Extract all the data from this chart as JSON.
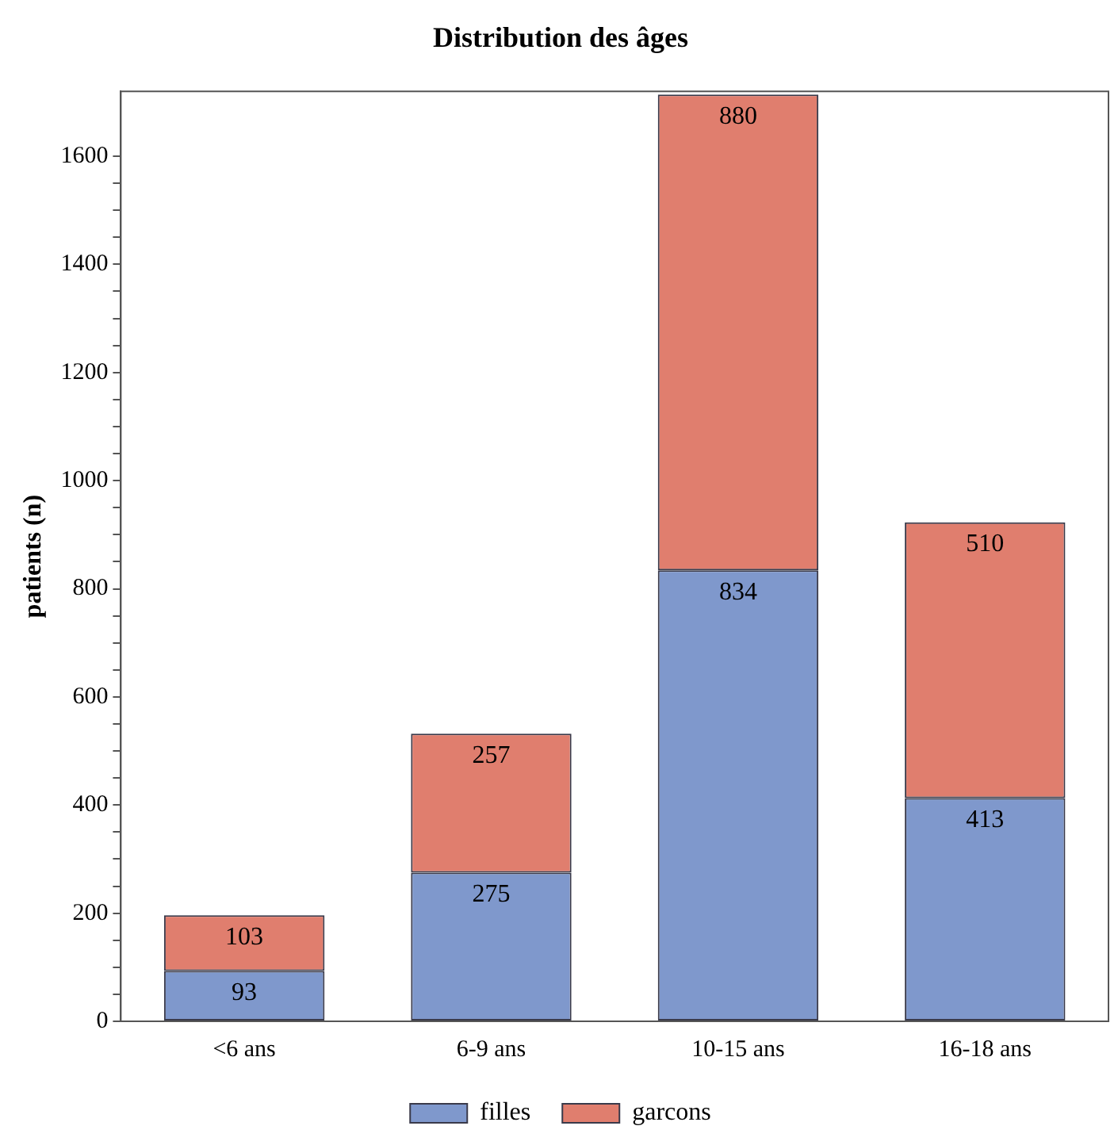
{
  "chart_data": {
    "type": "bar",
    "title": "Distribution des âges",
    "ylabel": "patients (n)",
    "categories": [
      "<6 ans",
      "6-9 ans",
      "10-15 ans",
      "16-18 ans"
    ],
    "series": [
      {
        "name": "filles",
        "color": "#7f98cc",
        "values": [
          93,
          275,
          834,
          413
        ]
      },
      {
        "name": "garcons",
        "color": "#e07e6e",
        "values": [
          103,
          257,
          880,
          510
        ]
      }
    ],
    "stacked": true,
    "data_labels": true,
    "legend": "bottom",
    "grid": false,
    "ylim": [
      0,
      1720
    ],
    "yticks": [
      0,
      {
        "value": 50,
        "label": null
      },
      200,
      {
        "value": 100,
        "label": null
      },
      {
        "value": 150,
        "label": null
      },
      {
        "value": 250,
        "label": null
      },
      {
        "value": 300,
        "label": null
      },
      {
        "value": 350,
        "label": null
      },
      400,
      {
        "value": 450,
        "label": null
      },
      {
        "value": 500,
        "label": null
      },
      {
        "value": 550,
        "label": null
      },
      600,
      {
        "value": 650,
        "label": null
      },
      {
        "value": 700,
        "label": null
      },
      {
        "value": 750,
        "label": null
      },
      800,
      {
        "value": 850,
        "label": null
      },
      {
        "value": 900,
        "label": null
      },
      {
        "value": 950,
        "label": null
      },
      1000,
      {
        "value": 1050,
        "label": null
      },
      {
        "value": 1100,
        "label": null
      },
      {
        "value": 1150,
        "label": null
      },
      1200,
      {
        "value": 1250,
        "label": null
      },
      {
        "value": 1300,
        "label": null
      },
      {
        "value": 1350,
        "label": null
      },
      1400,
      {
        "value": 1450,
        "label": null
      },
      {
        "value": 1500,
        "label": null
      },
      {
        "value": 1550,
        "label": null
      },
      1600
    ]
  }
}
